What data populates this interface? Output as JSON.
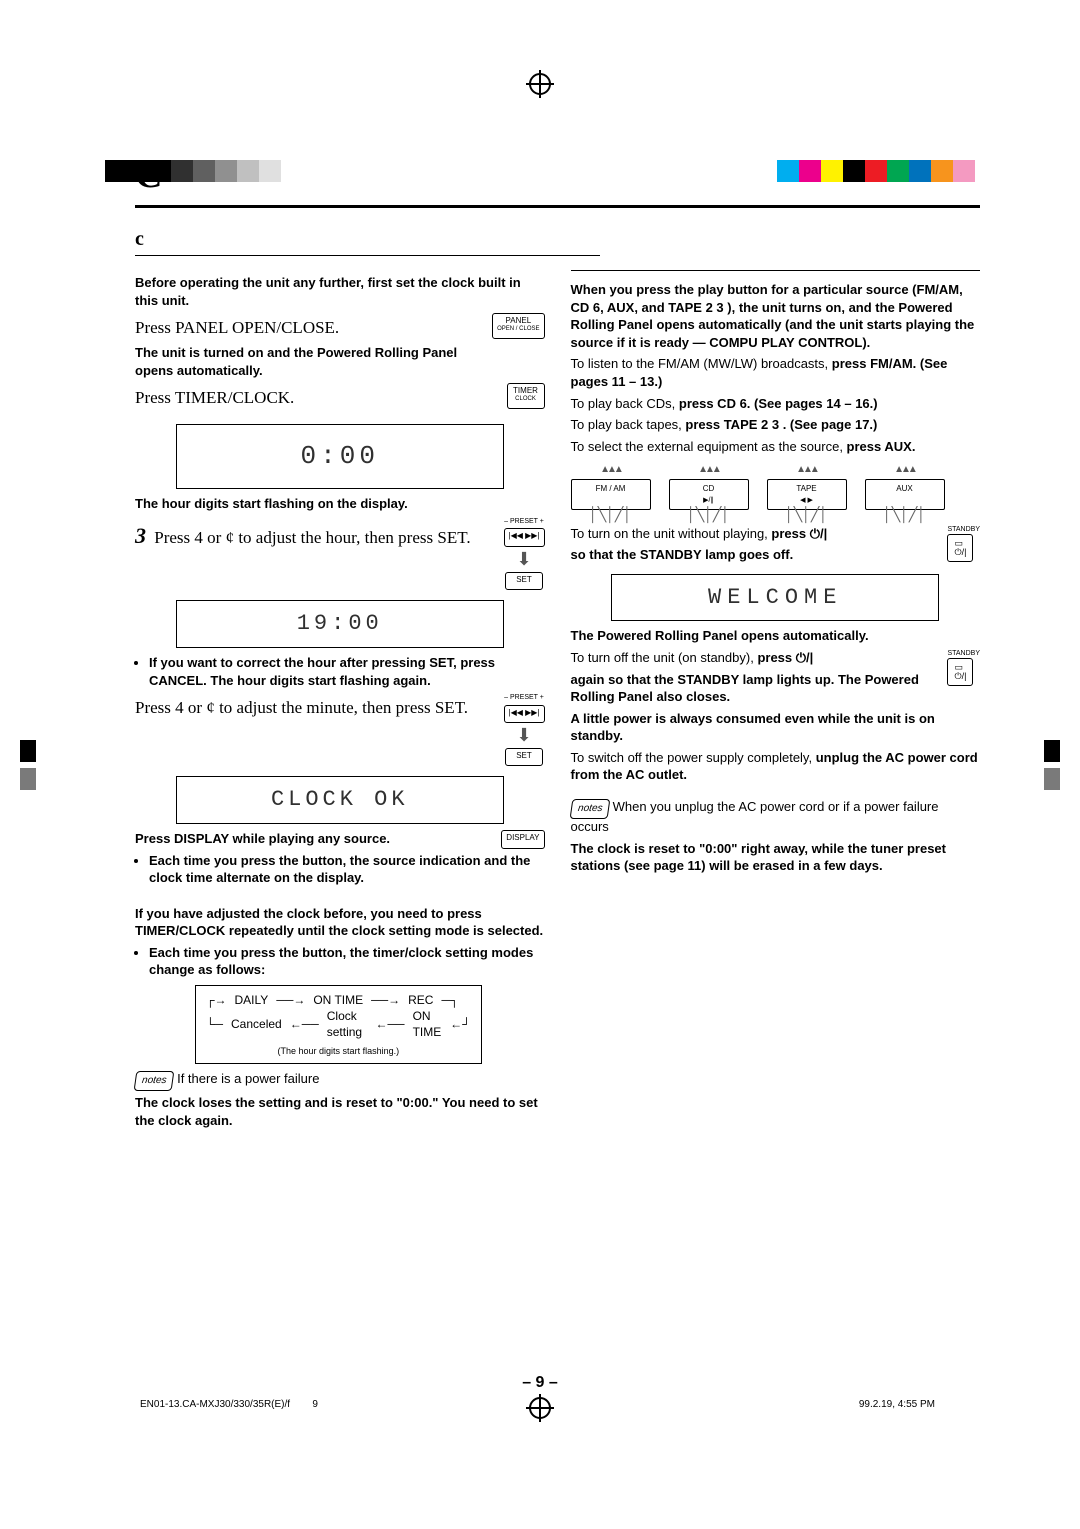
{
  "colorbar_left": [
    "#000000",
    "#000000",
    "#000000",
    "#303030",
    "#606060",
    "#909090",
    "#c0c0c0",
    "#e0e0e0"
  ],
  "colorbar_right": [
    "#00aeef",
    "#ec008c",
    "#fff200",
    "#000000",
    "#ed1c24",
    "#00a651",
    "#0072bc",
    "#f7941d",
    "#f49ac1"
  ],
  "title": "C",
  "subtitle": "c",
  "intro": "Before operating the unit any further, first set the clock built in this unit.",
  "step1": {
    "label": "Press PANEL OPEN/CLOSE.",
    "sub": "The unit is turned on and the Powered Rolling Panel opens automatically.",
    "btn_top": "PANEL",
    "btn_bot": "OPEN / CLOSE"
  },
  "step2": {
    "label": "Press TIMER/CLOCK.",
    "btn_top": "TIMER",
    "btn_bot": "CLOCK",
    "display": "0:00",
    "sub": "The hour digits start flashing on the display."
  },
  "step3": {
    "num": "3",
    "label_a": "Press 4",
    "label_b": "or ¢",
    "label_c": "to adjust the hour, then press SET.",
    "preset_label": "– PRESET +",
    "set_label": "SET",
    "display": "19:00",
    "note": "If you want to correct the hour after pressing SET, press CANCEL. The hour digits start flashing again."
  },
  "step4": {
    "label_a": "Press 4",
    "label_b": "or ¢",
    "label_c": "to adjust the minute, then press SET.",
    "display": "CLOCK  OK"
  },
  "disp_line": "Press DISPLAY while playing any source.",
  "disp_btn": "DISPLAY",
  "disp_bullet": "Each time you press the button, the source indication and the clock time alternate on the display.",
  "adjust_before": "If you have adjusted the clock before, you need to press TIMER/CLOCK repeatedly until the clock setting mode is selected.",
  "adjust_bullet": "Each time you press the button, the timer/clock setting modes change as follows:",
  "mode_flow": {
    "r1": [
      "DAILY",
      "ON TIME",
      "REC"
    ],
    "r2": [
      "Canceled",
      "Clock setting",
      "ON TIME"
    ],
    "sub": "(The hour digits start flashing.)"
  },
  "pf_note_head": "If there is a power failure",
  "pf_note_body": "The clock loses the setting and is reset to \"0:00.\" You need to set the clock again.",
  "right": {
    "hr_head": "When you press the play button for a particular source (FM/AM, CD 6",
    "hr_mid1": ", AUX, and TAPE 2 3 ), the unit turns on, and the Powered Rolling Panel opens automatically (and the unit starts playing the source if it is ready — COMPU PLAY CONTROL).",
    "fm": "To listen to the FM/AM (MW/LW) broadcasts, ",
    "fm_b": "press FM/AM. (See pages 11 – 13.)",
    "cd": "To play back CDs, ",
    "cd_b": "press CD 6",
    "cd_e": ". (See pages 14 – 16.)",
    "tape": "To play back tapes, ",
    "tape_b": "press TAPE 2 3 . (See page 17.)",
    "aux": "To select the external equipment as the source, ",
    "aux_b": "press AUX.",
    "src_labels": [
      "FM / AM",
      "CD",
      "TAPE",
      "AUX"
    ],
    "src_sub": [
      "",
      "▶/∥",
      "◀ ▶",
      ""
    ],
    "turnon": "To turn on the unit without playing, ",
    "turnon_b": "press ",
    "turnon_s": "⏻/|",
    "turnon_after": "so that the STANDBY lamp goes off.",
    "standby_label": "STANDBY",
    "welcome": "WELCOME",
    "panel_auto": "The Powered Rolling Panel opens automatically.",
    "turnoff": "To turn off the unit (on standby), ",
    "turnoff_b": "press ",
    "turnoff_s": "⏻/|",
    "turnoff_l2": "again so that the STANDBY lamp lights up. The Powered Rolling Panel also closes.",
    "turnoff_l3": "A little power is always consumed even while the unit is on standby.",
    "switchoff": "To switch off the power supply completely, ",
    "switchoff_b": "unplug the AC power cord from the AC outlet.",
    "note_head": "When you unplug the AC power cord or if a power failure occurs",
    "note_body": "The clock is reset to \"0:00\" right away, while the tuner preset stations (see page 11) will be erased in a few days."
  },
  "pageno": "– 9 –",
  "foot_l_a": "EN01-13.CA-MXJ30/330/35R(E)/f",
  "foot_l_b": "9",
  "foot_r": "99.2.19, 4:55 PM"
}
